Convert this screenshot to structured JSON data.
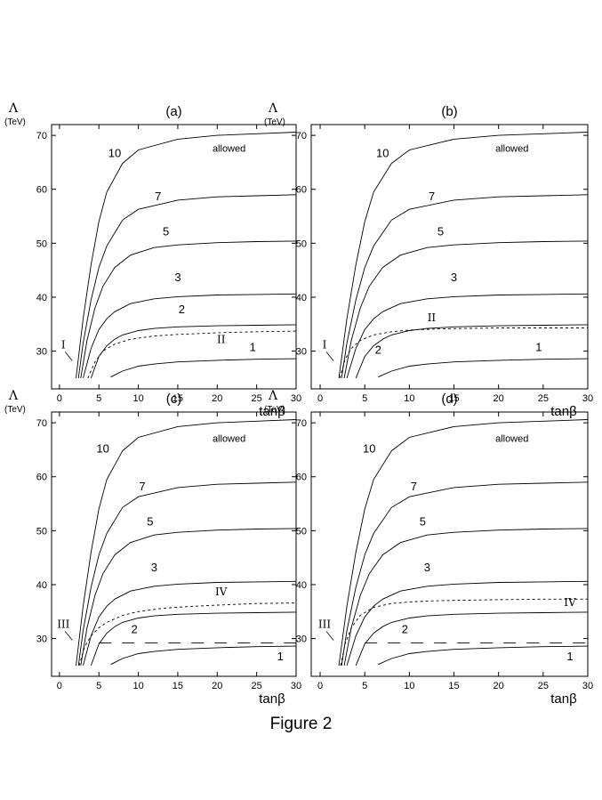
{
  "caption": "Figure 2",
  "chart_data": [
    {
      "type": "line",
      "title": "(a)",
      "ylabel": "Λ",
      "yunit": "(TeV)",
      "xlabel": "tanβ",
      "xlim": [
        -1,
        30
      ],
      "ylim": [
        23,
        72
      ],
      "xticks": [
        0,
        5,
        10,
        15,
        20,
        25,
        30
      ],
      "yticks": [
        30,
        40,
        50,
        60,
        70
      ],
      "grid": false,
      "series": [
        {
          "name": "10",
          "style": "solid",
          "x": [
            2.1,
            3,
            4,
            5,
            6,
            8,
            10,
            15,
            20,
            25,
            30
          ],
          "y": [
            25,
            36,
            46,
            54,
            59.5,
            64.8,
            67.3,
            69.3,
            70,
            70.3,
            70.6
          ]
        },
        {
          "name": "7",
          "style": "solid",
          "x": [
            2.4,
            3,
            4,
            5,
            6,
            8,
            10,
            15,
            20,
            25,
            30
          ],
          "y": [
            25,
            31.5,
            39.5,
            45.5,
            49.5,
            54.3,
            56.3,
            58,
            58.6,
            58.8,
            59
          ]
        },
        {
          "name": "5",
          "style": "solid",
          "x": [
            2.7,
            3.5,
            4.5,
            5.5,
            7,
            9,
            12,
            15,
            20,
            25,
            30
          ],
          "y": [
            25,
            32,
            38,
            42,
            45.5,
            47.8,
            49.2,
            49.7,
            50.1,
            50.3,
            50.4
          ]
        },
        {
          "name": "3",
          "style": "solid",
          "x": [
            3.0,
            4,
            5,
            6,
            7,
            9,
            12,
            15,
            20,
            25,
            30
          ],
          "y": [
            25,
            30.5,
            34,
            36,
            37.3,
            38.8,
            39.7,
            40.1,
            40.4,
            40.5,
            40.6
          ]
        },
        {
          "name": "2",
          "style": "solid",
          "x": [
            4.0,
            5,
            6,
            7,
            8,
            10,
            12,
            15,
            20,
            25,
            30
          ],
          "y": [
            25,
            29,
            31,
            32.2,
            33,
            33.8,
            34.2,
            34.5,
            34.7,
            34.8,
            34.9
          ]
        },
        {
          "name": "1",
          "style": "solid",
          "x": [
            6.5,
            8,
            10,
            12,
            15,
            20,
            25,
            30
          ],
          "y": [
            25.2,
            26.3,
            27.2,
            27.6,
            28,
            28.3,
            28.5,
            28.6
          ]
        },
        {
          "name": "II",
          "style": "dashed",
          "x": [
            3.6,
            4.5,
            5.5,
            7,
            9,
            12,
            15,
            20,
            25,
            30
          ],
          "y": [
            25,
            28,
            30,
            31.3,
            32.2,
            32.8,
            33.1,
            33.4,
            33.6,
            33.7
          ]
        }
      ],
      "annotations": [
        {
          "text": "allowed",
          "x": 21.5,
          "y": 67
        },
        {
          "text": "10",
          "x": 7,
          "y": 66
        },
        {
          "text": "7",
          "x": 12.5,
          "y": 58
        },
        {
          "text": "5",
          "x": 13.5,
          "y": 51.5
        },
        {
          "text": "3",
          "x": 15,
          "y": 43
        },
        {
          "text": "2",
          "x": 15.5,
          "y": 37
        },
        {
          "text": "II",
          "x": 20.5,
          "y": 31.5
        },
        {
          "text": "1",
          "x": 24.5,
          "y": 30
        },
        {
          "text": "I",
          "x": 0.5,
          "y": 30.5
        }
      ]
    },
    {
      "type": "line",
      "title": "(b)",
      "ylabel": "Λ",
      "yunit": "(TeV)",
      "xlabel": "tanβ",
      "xlim": [
        -1,
        30
      ],
      "ylim": [
        23,
        72
      ],
      "xticks": [
        0,
        5,
        10,
        15,
        20,
        25,
        30
      ],
      "yticks": [
        30,
        40,
        50,
        60,
        70
      ],
      "grid": false,
      "series": [
        {
          "name": "10",
          "style": "solid",
          "x": [
            2.1,
            3,
            4,
            5,
            6,
            8,
            10,
            15,
            20,
            25,
            30
          ],
          "y": [
            25,
            36,
            46,
            54,
            59.5,
            64.8,
            67.3,
            69.3,
            70,
            70.3,
            70.6
          ]
        },
        {
          "name": "7",
          "style": "solid",
          "x": [
            2.4,
            3,
            4,
            5,
            6,
            8,
            10,
            15,
            20,
            25,
            30
          ],
          "y": [
            25,
            31.5,
            39.5,
            45.5,
            49.5,
            54.3,
            56.3,
            58,
            58.6,
            58.8,
            59
          ]
        },
        {
          "name": "5",
          "style": "solid",
          "x": [
            2.7,
            3.5,
            4.5,
            5.5,
            7,
            9,
            12,
            15,
            20,
            25,
            30
          ],
          "y": [
            25,
            32,
            38,
            42,
            45.5,
            47.8,
            49.2,
            49.7,
            50.1,
            50.3,
            50.4
          ]
        },
        {
          "name": "3",
          "style": "solid",
          "x": [
            3.0,
            4,
            5,
            6,
            7,
            9,
            12,
            15,
            20,
            25,
            30
          ],
          "y": [
            25,
            30.5,
            34,
            36,
            37.3,
            38.8,
            39.7,
            40.1,
            40.4,
            40.5,
            40.6
          ]
        },
        {
          "name": "2",
          "style": "solid",
          "x": [
            4.0,
            5,
            6,
            7,
            8,
            10,
            12,
            15,
            20,
            25,
            30
          ],
          "y": [
            25,
            29,
            31,
            32.2,
            33,
            33.8,
            34.2,
            34.5,
            34.7,
            34.8,
            34.9
          ]
        },
        {
          "name": "1",
          "style": "solid",
          "x": [
            6.5,
            8,
            10,
            12,
            15,
            20,
            25,
            30
          ],
          "y": [
            25.2,
            26.3,
            27.2,
            27.6,
            28,
            28.3,
            28.5,
            28.6
          ]
        },
        {
          "name": "II",
          "style": "dashed",
          "x": [
            2.2,
            2.8,
            3.5,
            4.5,
            6,
            8,
            10,
            13,
            16,
            20,
            25,
            30
          ],
          "y": [
            25,
            28.5,
            30.5,
            32,
            33,
            33.6,
            33.9,
            34.1,
            34.2,
            34.3,
            34.3,
            34.3
          ]
        }
      ],
      "annotations": [
        {
          "text": "allowed",
          "x": 21.5,
          "y": 67
        },
        {
          "text": "10",
          "x": 7,
          "y": 66
        },
        {
          "text": "7",
          "x": 12.5,
          "y": 58
        },
        {
          "text": "5",
          "x": 13.5,
          "y": 51.5
        },
        {
          "text": "3",
          "x": 15,
          "y": 43
        },
        {
          "text": "II",
          "x": 12.5,
          "y": 35.5
        },
        {
          "text": "2",
          "x": 6.5,
          "y": 29.5
        },
        {
          "text": "1",
          "x": 24.5,
          "y": 30
        },
        {
          "text": "I",
          "x": 0.5,
          "y": 30.5
        }
      ]
    },
    {
      "type": "line",
      "title": "(c)",
      "ylabel": "Λ",
      "yunit": "(TeV)",
      "xlabel": "tanβ",
      "xlim": [
        -1,
        30
      ],
      "ylim": [
        23,
        72
      ],
      "xticks": [
        0,
        5,
        10,
        15,
        20,
        25,
        30
      ],
      "yticks": [
        30,
        40,
        50,
        60,
        70
      ],
      "grid": false,
      "series": [
        {
          "name": "10",
          "style": "solid",
          "x": [
            2.1,
            3,
            4,
            5,
            6,
            8,
            10,
            15,
            20,
            25,
            30
          ],
          "y": [
            25,
            36,
            46,
            54,
            59.5,
            64.8,
            67.3,
            69.3,
            70,
            70.3,
            70.6
          ]
        },
        {
          "name": "7",
          "style": "solid",
          "x": [
            2.4,
            3,
            4,
            5,
            6,
            8,
            10,
            15,
            20,
            25,
            30
          ],
          "y": [
            25,
            31.5,
            39.5,
            45.5,
            49.5,
            54.3,
            56.3,
            58,
            58.6,
            58.8,
            59
          ]
        },
        {
          "name": "5",
          "style": "solid",
          "x": [
            2.7,
            3.5,
            4.5,
            5.5,
            7,
            9,
            12,
            15,
            20,
            25,
            30
          ],
          "y": [
            25,
            32,
            38,
            42,
            45.5,
            47.8,
            49.2,
            49.7,
            50.1,
            50.3,
            50.4
          ]
        },
        {
          "name": "3",
          "style": "solid",
          "x": [
            3.0,
            4,
            5,
            6,
            7,
            9,
            12,
            15,
            20,
            25,
            30
          ],
          "y": [
            25,
            30.5,
            34,
            36,
            37.3,
            38.8,
            39.7,
            40.1,
            40.4,
            40.5,
            40.6
          ]
        },
        {
          "name": "2",
          "style": "solid",
          "x": [
            4.0,
            5,
            6,
            7,
            8,
            10,
            12,
            15,
            20,
            25,
            30
          ],
          "y": [
            25,
            29,
            31,
            32.2,
            33,
            33.8,
            34.2,
            34.5,
            34.7,
            34.8,
            34.9
          ]
        },
        {
          "name": "1",
          "style": "solid",
          "x": [
            6.5,
            8,
            10,
            12,
            15,
            20,
            25,
            30
          ],
          "y": [
            25.2,
            26.3,
            27.2,
            27.6,
            28,
            28.3,
            28.5,
            28.6
          ]
        },
        {
          "name": "IV",
          "style": "dashed",
          "x": [
            2.5,
            3.2,
            4,
            5,
            6,
            8,
            10,
            13,
            16,
            20,
            25,
            30
          ],
          "y": [
            25,
            28.5,
            30.5,
            32,
            33,
            34.3,
            35,
            35.6,
            35.9,
            36.2,
            36.5,
            36.6
          ]
        },
        {
          "name": "",
          "style": "longdash",
          "x": [
            5,
            30
          ],
          "y": [
            29.2,
            29.2
          ]
        }
      ],
      "annotations": [
        {
          "text": "allowed",
          "x": 21.5,
          "y": 66.5
        },
        {
          "text": "10",
          "x": 5.5,
          "y": 64.5
        },
        {
          "text": "7",
          "x": 10.5,
          "y": 57.5
        },
        {
          "text": "5",
          "x": 11.5,
          "y": 51
        },
        {
          "text": "3",
          "x": 12,
          "y": 42.5
        },
        {
          "text": "IV",
          "x": 20.5,
          "y": 38
        },
        {
          "text": "2",
          "x": 9.5,
          "y": 31
        },
        {
          "text": "1",
          "x": 28,
          "y": 26
        },
        {
          "text": "III",
          "x": 0.5,
          "y": 32
        }
      ]
    },
    {
      "type": "line",
      "title": "(d)",
      "ylabel": "Λ",
      "yunit": "(TeV)",
      "xlabel": "tanβ",
      "xlim": [
        -1,
        30
      ],
      "ylim": [
        23,
        72
      ],
      "xticks": [
        0,
        5,
        10,
        15,
        20,
        25,
        30
      ],
      "yticks": [
        30,
        40,
        50,
        60,
        70
      ],
      "grid": false,
      "series": [
        {
          "name": "10",
          "style": "solid",
          "x": [
            2.1,
            3,
            4,
            5,
            6,
            8,
            10,
            15,
            20,
            25,
            30
          ],
          "y": [
            25,
            36,
            46,
            54,
            59.5,
            64.8,
            67.3,
            69.3,
            70,
            70.3,
            70.6
          ]
        },
        {
          "name": "7",
          "style": "solid",
          "x": [
            2.4,
            3,
            4,
            5,
            6,
            8,
            10,
            15,
            20,
            25,
            30
          ],
          "y": [
            25,
            31.5,
            39.5,
            45.5,
            49.5,
            54.3,
            56.3,
            58,
            58.6,
            58.8,
            59
          ]
        },
        {
          "name": "5",
          "style": "solid",
          "x": [
            2.7,
            3.5,
            4.5,
            5.5,
            7,
            9,
            12,
            15,
            20,
            25,
            30
          ],
          "y": [
            25,
            32,
            38,
            42,
            45.5,
            47.8,
            49.2,
            49.7,
            50.1,
            50.3,
            50.4
          ]
        },
        {
          "name": "3",
          "style": "solid",
          "x": [
            3.0,
            4,
            5,
            6,
            7,
            9,
            12,
            15,
            20,
            25,
            30
          ],
          "y": [
            25,
            30.5,
            34,
            36,
            37.3,
            38.8,
            39.7,
            40.1,
            40.4,
            40.5,
            40.6
          ]
        },
        {
          "name": "2",
          "style": "solid",
          "x": [
            4.0,
            5,
            6,
            7,
            8,
            10,
            12,
            15,
            20,
            25,
            30
          ],
          "y": [
            25,
            29,
            31,
            32.2,
            33,
            33.8,
            34.2,
            34.5,
            34.7,
            34.8,
            34.9
          ]
        },
        {
          "name": "1",
          "style": "solid",
          "x": [
            6.5,
            8,
            10,
            12,
            15,
            20,
            25,
            30
          ],
          "y": [
            25.2,
            26.3,
            27.2,
            27.6,
            28,
            28.3,
            28.5,
            28.6
          ]
        },
        {
          "name": "IV",
          "style": "dashed",
          "x": [
            2.3,
            2.8,
            3.5,
            4.5,
            6,
            8,
            10,
            13,
            16,
            20,
            25,
            30
          ],
          "y": [
            25,
            29,
            32,
            34.3,
            35.8,
            36.5,
            36.8,
            37,
            37.1,
            37.2,
            37.3,
            37.3
          ]
        },
        {
          "name": "",
          "style": "longdash",
          "x": [
            5,
            30
          ],
          "y": [
            29.2,
            29.2
          ]
        }
      ],
      "annotations": [
        {
          "text": "allowed",
          "x": 21.5,
          "y": 66.5
        },
        {
          "text": "10",
          "x": 5.5,
          "y": 64.5
        },
        {
          "text": "7",
          "x": 10.5,
          "y": 57.5
        },
        {
          "text": "5",
          "x": 11.5,
          "y": 51
        },
        {
          "text": "3",
          "x": 12,
          "y": 42.5
        },
        {
          "text": "IV",
          "x": 28,
          "y": 36
        },
        {
          "text": "2",
          "x": 9.5,
          "y": 31
        },
        {
          "text": "1",
          "x": 28,
          "y": 26
        },
        {
          "text": "III",
          "x": 0.5,
          "y": 32
        }
      ]
    }
  ]
}
